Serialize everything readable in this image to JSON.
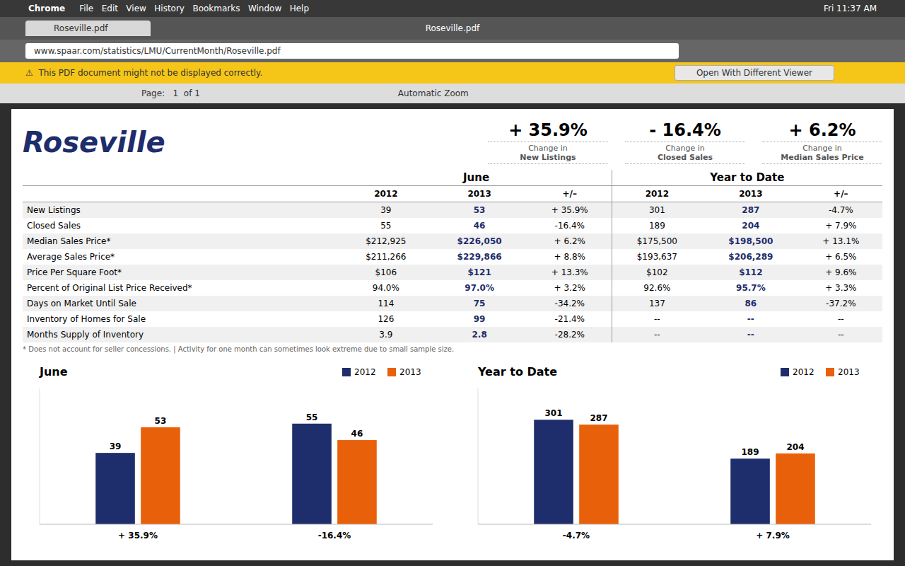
{
  "chart_data": [
    {
      "type": "browser",
      "annotations": [
        "Chrome",
        "File   Edit   View   History   Bookmarks   Window   Help",
        "Fri 11:37 AM",
        "Roseville.pdf",
        "Roseville.pdf",
        "www.spaar.com/statistics/LMU/CurrentMonth/Roseville.pdf",
        "⚠  This PDF document might not be displayed correctly.",
        "Open With Different Viewer",
        "Page:   1  of 1",
        "Automatic Zoom"
      ]
    },
    {
      "type": "table",
      "title": "Roseville",
      "color": "#1e2d6b",
      "stats": [
        {
          "value": "+ 35.9%",
          "label1": "Change in",
          "label2": "New Listings"
        },
        {
          "value": "- 16.4%",
          "label1": "Change in",
          "label2": "Closed Sales"
        },
        {
          "value": "+ 6.2%",
          "label1": "Change in",
          "label2": "Median Sales Price"
        }
      ],
      "column_groups": [
        "June",
        "Year to Date"
      ],
      "columns": [
        "2012",
        "2013",
        "+/–",
        "2012",
        "2013",
        "+/–"
      ],
      "rows": [
        [
          "New Listings",
          "39",
          "53",
          "+ 35.9%",
          "301",
          "287",
          "-4.7%"
        ],
        [
          "Closed Sales",
          "55",
          "46",
          "-16.4%",
          "189",
          "204",
          "+ 7.9%"
        ],
        [
          "Median Sales Price*",
          "$212,925",
          "$226,050",
          "+ 6.2%",
          "$175,500",
          "$198,500",
          "+ 13.1%"
        ],
        [
          "Average Sales Price*",
          "$211,266",
          "$229,866",
          "+ 8.8%",
          "$193,637",
          "$206,289",
          "+ 6.5%"
        ],
        [
          "Price Per Square Foot*",
          "$106",
          "$121",
          "+ 13.3%",
          "$102",
          "$112",
          "+ 9.6%"
        ],
        [
          "Percent of Original List Price Received*",
          "94.0%",
          "97.0%",
          "+ 3.2%",
          "92.6%",
          "95.7%",
          "+ 3.3%"
        ],
        [
          "Days on Market Until Sale",
          "114",
          "75",
          "-34.2%",
          "137",
          "86",
          "-37.2%"
        ],
        [
          "Inventory of Homes for Sale",
          "126",
          "99",
          "-21.4%",
          "--",
          "--",
          "--"
        ],
        [
          "Months Supply of Inventory",
          "3.9",
          "2.8",
          "-28.2%",
          "--",
          "--",
          "--"
        ]
      ],
      "annotations": [
        "* Does not account for seller concessions.  |  Activity for one month can sometimes look extreme due to small sample size."
      ]
    },
    {
      "type": "bar",
      "title": "June",
      "categories": [
        "+ 35.9%",
        "-16.4%"
      ],
      "series": [
        {
          "name": "2012",
          "color": "#1e2d6b",
          "values": [
            39,
            55
          ]
        },
        {
          "name": "2013",
          "color": "#e8610a",
          "values": [
            53,
            46
          ]
        }
      ],
      "ylim": [
        0,
        74.25
      ],
      "yticks": [],
      "grid": false,
      "legend": "upper right",
      "data_labels": true,
      "tick_labels": "x"
    },
    {
      "type": "bar",
      "title": "Year to Date",
      "categories": [
        "-4.7%",
        "+ 7.9%"
      ],
      "series": [
        {
          "name": "2012",
          "color": "#1e2d6b",
          "values": [
            301,
            189
          ]
        },
        {
          "name": "2013",
          "color": "#e8610a",
          "values": [
            287,
            204
          ]
        }
      ],
      "ylim": [
        0,
        391.3
      ],
      "yticks": [],
      "grid": false,
      "legend": "upper right",
      "data_labels": true,
      "tick_labels": "x"
    }
  ]
}
